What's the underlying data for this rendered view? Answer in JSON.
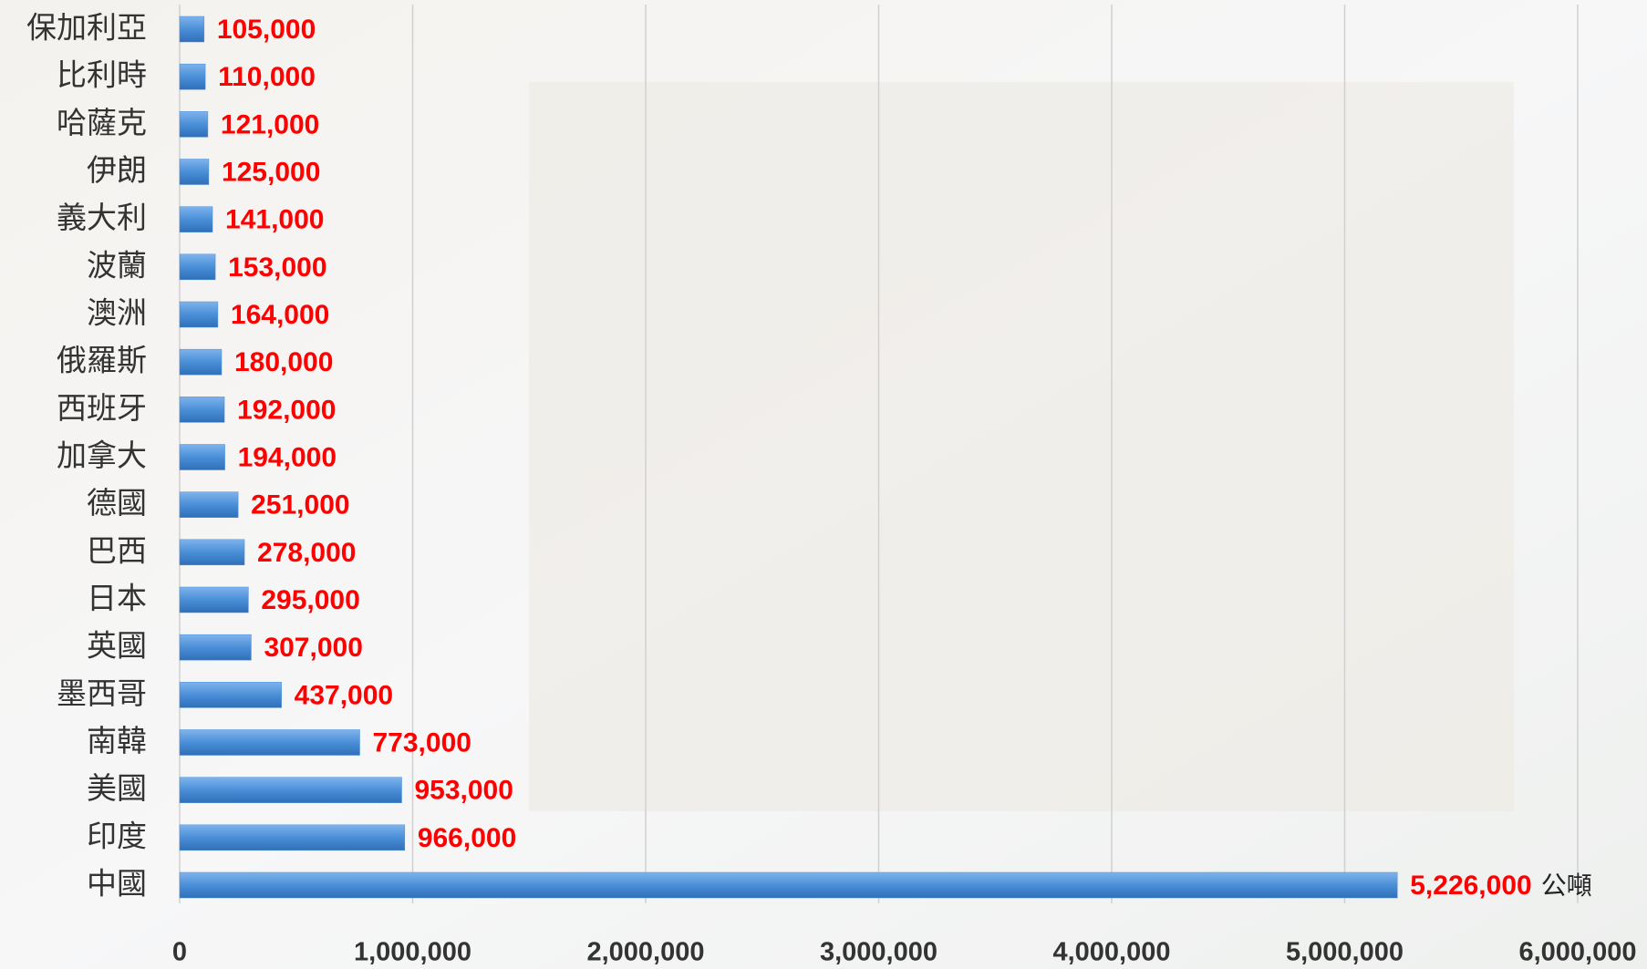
{
  "chart_data": {
    "type": "bar",
    "orientation": "horizontal",
    "categories": [
      "保加利亞",
      "比利時",
      "哈薩克",
      "伊朗",
      "義大利",
      "波蘭",
      "澳洲",
      "俄羅斯",
      "西班牙",
      "加拿大",
      "德國",
      "巴西",
      "日本",
      "英國",
      "墨西哥",
      "南韓",
      "美國",
      "印度",
      "中國"
    ],
    "values": [
      105000,
      110000,
      121000,
      125000,
      141000,
      153000,
      164000,
      180000,
      192000,
      194000,
      251000,
      278000,
      295000,
      307000,
      437000,
      773000,
      953000,
      966000,
      5226000
    ],
    "value_labels": [
      "105,000",
      "110,000",
      "121,000",
      "125,000",
      "141,000",
      "153,000",
      "164,000",
      "180,000",
      "192,000",
      "194,000",
      "251,000",
      "278,000",
      "295,000",
      "307,000",
      "437,000",
      "773,000",
      "953,000",
      "966,000",
      "5,226,000"
    ],
    "unit_label": "公噸",
    "color": "#4a8fd8",
    "label_color": "#ff0000",
    "xlim": [
      0,
      6000000
    ],
    "xticks": [
      0,
      {
        "value": 1000000,
        "label": "1,000,000"
      },
      {
        "value": 2000000,
        "label": "2,000,000"
      },
      {
        "value": 3000000,
        "label": "3,000,000"
      },
      {
        "value": 4000000,
        "label": "4,000,000"
      },
      {
        "value": 5000000,
        "label": "5,000,000"
      },
      {
        "value": 6000000,
        "label": "6,000,000"
      }
    ],
    "grid": true
  }
}
